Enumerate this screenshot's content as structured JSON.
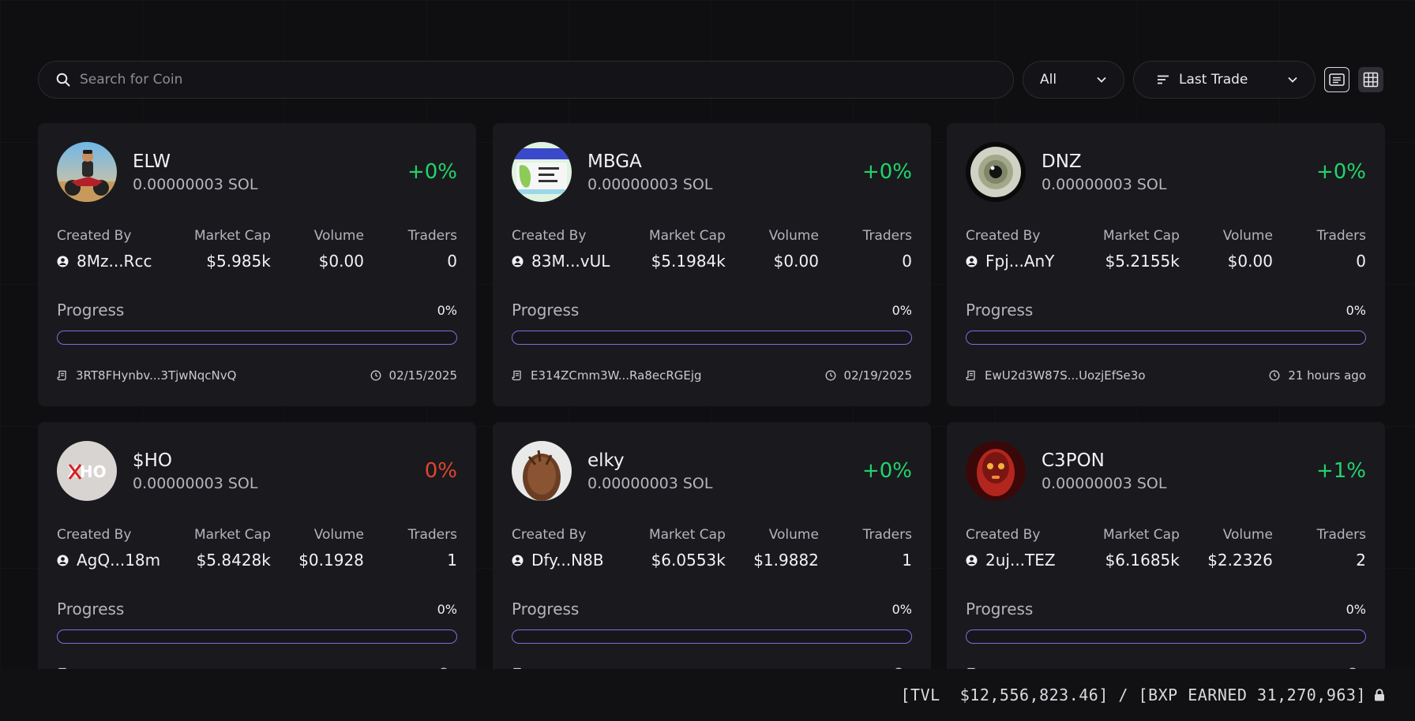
{
  "search": {
    "placeholder": "Search for Coin",
    "value": ""
  },
  "filters": {
    "type_selected": "All",
    "sort_selected": "Last Trade",
    "view_mode": "grid"
  },
  "labels": {
    "created_by": "Created By",
    "market_cap": "Market Cap",
    "volume": "Volume",
    "traders": "Traders",
    "progress": "Progress"
  },
  "colors": {
    "positive": "#21d46b",
    "negative": "#e0452f",
    "progress_border": "#7d6ee0"
  },
  "coins": [
    {
      "ticker": "ELW",
      "price": "0.00000003 SOL",
      "change": "+0%",
      "direction": "up",
      "created_by": "8Mz...Rcc",
      "market_cap": "$5.985k",
      "volume": "$0.00",
      "traders": "0",
      "progress_label": "0%",
      "progress": 0,
      "address": "3RT8FHynbv...3TjwNqcNvQ",
      "time": "02/15/2025",
      "avatar_icon": "motorcycle-rider-avatar"
    },
    {
      "ticker": "MBGA",
      "price": "0.00000003 SOL",
      "change": "+0%",
      "direction": "up",
      "created_by": "83M...vUL",
      "market_cap": "$5.1984k",
      "volume": "$0.00",
      "traders": "0",
      "progress_label": "0%",
      "progress": 0,
      "address": "E314ZCmm3W...Ra8ecRGEjg",
      "time": "02/19/2025",
      "avatar_icon": "passport-avatar"
    },
    {
      "ticker": "DNZ",
      "price": "0.00000003 SOL",
      "change": "+0%",
      "direction": "up",
      "created_by": "Fpj...AnY",
      "market_cap": "$5.2155k",
      "volume": "$0.00",
      "traders": "0",
      "progress_label": "0%",
      "progress": 0,
      "address": "EwU2d3W87S...UozjEfSe3o",
      "time": "21 hours ago",
      "avatar_icon": "eye-avatar"
    },
    {
      "ticker": "$HO",
      "price": "0.00000003 SOL",
      "change": "0%",
      "direction": "down",
      "created_by": "AgQ...18m",
      "market_cap": "$5.8428k",
      "volume": "$0.1928",
      "traders": "1",
      "progress_label": "0%",
      "progress": 0,
      "address": "",
      "time": "",
      "avatar_icon": "xho-logo-avatar",
      "avatar_text": "XHO"
    },
    {
      "ticker": "elky",
      "price": "0.00000003 SOL",
      "change": "+0%",
      "direction": "up",
      "created_by": "Dfy...N8B",
      "market_cap": "$6.0553k",
      "volume": "$1.9882",
      "traders": "1",
      "progress_label": "0%",
      "progress": 0,
      "address": "",
      "time": "",
      "avatar_icon": "furry-creature-avatar"
    },
    {
      "ticker": "C3PON",
      "price": "0.00000003 SOL",
      "change": "+1%",
      "direction": "up",
      "created_by": "2uj...TEZ",
      "market_cap": "$6.1685k",
      "volume": "$2.2326",
      "traders": "2",
      "progress_label": "0%",
      "progress": 0,
      "address": "",
      "time": "",
      "avatar_icon": "robot-avatar"
    }
  ],
  "status": {
    "tvl_label": "TVL",
    "tvl": "$12,556,823.46",
    "bxp_label": "BXP EARNED",
    "bxp": "31,270,963"
  }
}
